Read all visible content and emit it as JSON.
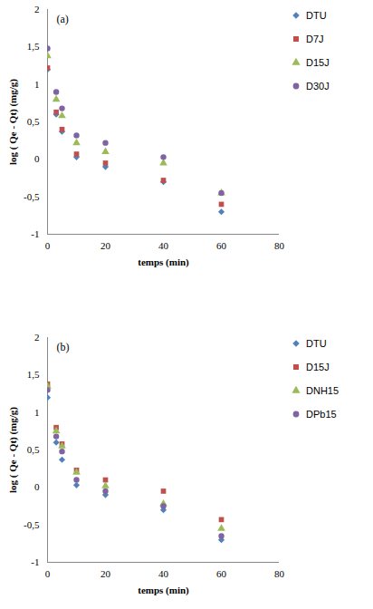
{
  "chart_data": [
    {
      "type": "scatter",
      "title": "(a)",
      "x_label": "temps (min)",
      "y_label": "log ( Qe - Qt) (mg/g)",
      "x": [
        0,
        3,
        5,
        10,
        20,
        40,
        60
      ],
      "series": [
        {
          "name": "DTU",
          "color": "#4F81BD",
          "marker": "diamond",
          "values": [
            1.2,
            0.6,
            0.37,
            0.03,
            -0.1,
            -0.3,
            -0.7
          ]
        },
        {
          "name": "D7J",
          "color": "#C0504D",
          "marker": "square",
          "values": [
            1.22,
            0.63,
            0.4,
            0.07,
            -0.05,
            -0.28,
            -0.6
          ]
        },
        {
          "name": "D15J",
          "color": "#9BBB59",
          "marker": "triangle",
          "values": [
            1.38,
            0.8,
            0.58,
            0.22,
            0.1,
            -0.05,
            -0.45
          ]
        },
        {
          "name": "D30J",
          "color": "#8064A2",
          "marker": "circle",
          "values": [
            1.48,
            0.9,
            0.68,
            0.32,
            0.22,
            0.03,
            -0.45
          ]
        }
      ],
      "xlim": [
        0,
        80
      ],
      "xticks": [
        0,
        20,
        40,
        60,
        80
      ],
      "ylim": [
        -1,
        2
      ],
      "yticks": [
        -1,
        {
          "value": -0.5,
          "label": "-0,5"
        },
        0,
        {
          "value": 0.5,
          "label": "0,5"
        },
        1,
        {
          "value": 1.5,
          "label": "1,5"
        },
        2
      ],
      "grid": false,
      "legend": "right"
    },
    {
      "type": "scatter",
      "title": "(b)",
      "x_label": "temps (min)",
      "y_label": "log ( Qe - Qt) (mg/g)",
      "x": [
        0,
        3,
        5,
        10,
        20,
        40,
        60
      ],
      "series": [
        {
          "name": "DTU",
          "color": "#4F81BD",
          "marker": "diamond",
          "values": [
            1.2,
            0.6,
            0.37,
            0.03,
            -0.1,
            -0.3,
            -0.7
          ]
        },
        {
          "name": "D15J",
          "color": "#C0504D",
          "marker": "square",
          "values": [
            1.38,
            0.8,
            0.58,
            0.23,
            0.1,
            -0.05,
            -0.43
          ]
        },
        {
          "name": "DNH15",
          "color": "#9BBB59",
          "marker": "triangle",
          "values": [
            1.35,
            0.75,
            0.55,
            0.2,
            0.02,
            -0.22,
            -0.55
          ]
        },
        {
          "name": "DPb15",
          "color": "#8064A2",
          "marker": "circle",
          "values": [
            1.3,
            0.68,
            0.48,
            0.1,
            -0.05,
            -0.25,
            -0.65
          ]
        }
      ],
      "xlim": [
        0,
        80
      ],
      "xticks": [
        0,
        20,
        40,
        60,
        80
      ],
      "ylim": [
        -1,
        2
      ],
      "yticks": [
        -1,
        {
          "value": -0.5,
          "label": "-0,5"
        },
        0,
        {
          "value": 0.5,
          "label": "0,5"
        },
        1,
        {
          "value": 1.5,
          "label": "1,5"
        },
        2
      ],
      "grid": false,
      "legend": "right"
    }
  ]
}
